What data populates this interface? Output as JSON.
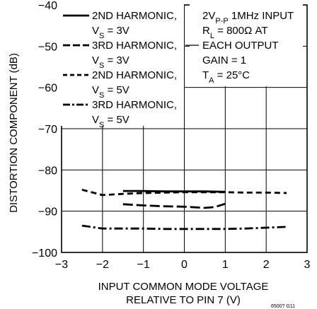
{
  "chart_data": {
    "type": "line",
    "xlabel_line1": "INPUT COMMON MODE VOLTAGE",
    "xlabel_line2": "RELATIVE TO PIN 7 (V)",
    "ylabel": "DISTORTION COMPONENT (dB)",
    "xlim": [
      -3,
      3
    ],
    "ylim": [
      -100,
      -40
    ],
    "x_ticks": [
      -3,
      -2,
      -1,
      0,
      1,
      2,
      3
    ],
    "y_ticks": [
      -40,
      -50,
      -60,
      -70,
      -80,
      -90,
      -100
    ],
    "grid": true,
    "legend_position": "top-left",
    "figure_id": "6500? G11",
    "conditions": [
      "2VP-P 1MHz INPUT",
      "RL = 800Ω AT",
      "EACH OUTPUT",
      "GAIN = 1",
      "TA = 25°C"
    ],
    "series": [
      {
        "name_line1": "2ND HARMONIC,",
        "name_line2": "VS = 3V",
        "style": "solid",
        "x": [
          -1.5,
          -1.0,
          -0.5,
          0.0,
          0.5,
          1.0
        ],
        "y": [
          -85.1,
          -85.1,
          -85.2,
          -85.2,
          -85.2,
          -85.3
        ]
      },
      {
        "name_line1": "3RD HARMONIC,",
        "name_line2": "VS = 3V",
        "style": "long-dash",
        "x": [
          -1.5,
          -1.0,
          -0.5,
          0.0,
          0.5,
          0.75,
          1.0
        ],
        "y": [
          -88.3,
          -88.6,
          -88.8,
          -88.9,
          -89.2,
          -89.0,
          -88.2
        ]
      },
      {
        "name_line1": "2ND HARMONIC,",
        "name_line2": "VS = 5V",
        "style": "dashed",
        "x": [
          -2.5,
          -2.0,
          -1.5,
          -1.0,
          -0.5,
          0.0,
          0.5,
          1.0,
          1.5,
          2.0,
          2.5
        ],
        "y": [
          -84.8,
          -86.1,
          -85.8,
          -85.6,
          -85.5,
          -85.4,
          -85.4,
          -85.4,
          -85.5,
          -85.5,
          -85.6
        ]
      },
      {
        "name_line1": "3RD HARMONIC,",
        "name_line2": "VS = 5V",
        "style": "dash-dot",
        "x": [
          -2.5,
          -2.0,
          -1.5,
          -1.0,
          -0.5,
          0.0,
          0.5,
          1.0,
          1.5,
          2.0,
          2.5
        ],
        "y": [
          -93.5,
          -94.2,
          -94.2,
          -94.2,
          -94.3,
          -94.3,
          -94.3,
          -94.3,
          -94.2,
          -94.0,
          -93.8
        ]
      }
    ]
  }
}
